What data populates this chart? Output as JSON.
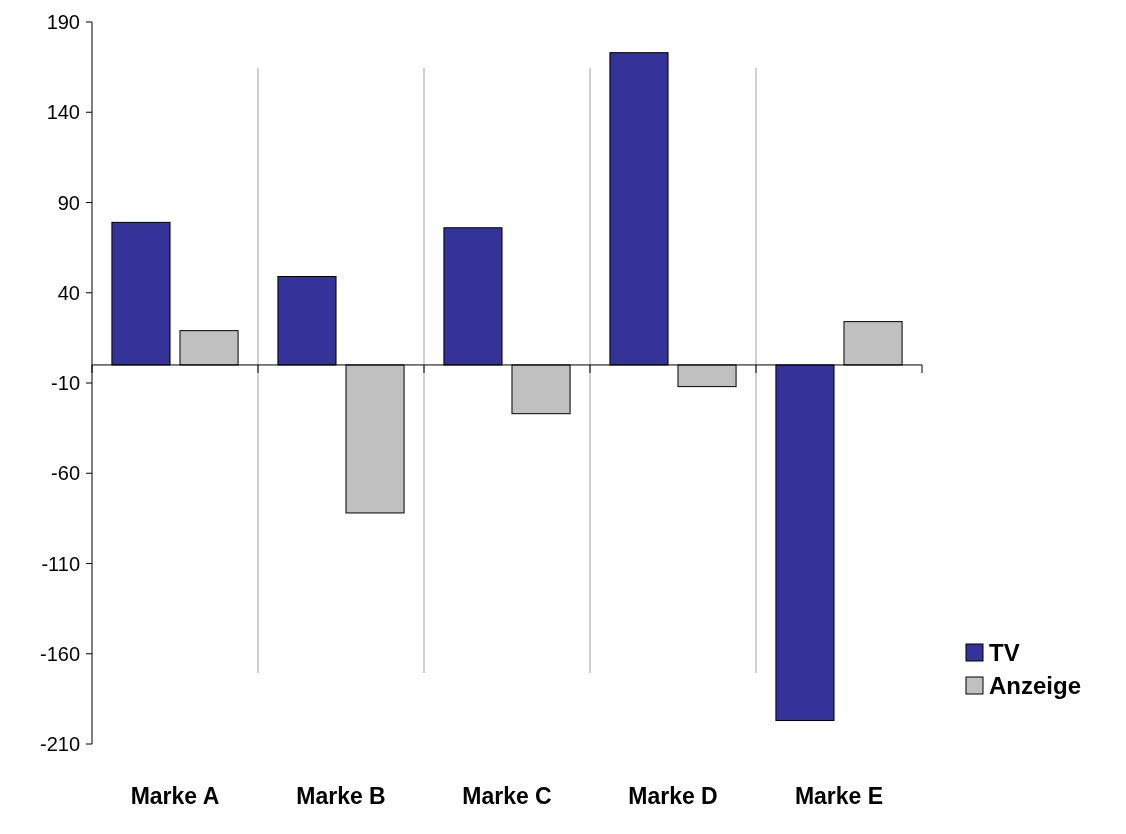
{
  "chart_data": {
    "type": "bar",
    "categories": [
      "Marke A",
      "Marke B",
      "Marke C",
      "Marke D",
      "Marke E"
    ],
    "series": [
      {
        "name": "TV",
        "color": "#333399",
        "values": [
          79,
          49,
          76,
          173,
          -197
        ]
      },
      {
        "name": "Anzeige",
        "color": "#c0c0c0",
        "values": [
          19,
          -82,
          -27,
          -12,
          24
        ]
      }
    ],
    "ylim": [
      -210,
      190
    ],
    "yticks": [
      -210,
      -160,
      -110,
      -60,
      -10,
      40,
      90,
      140,
      190
    ],
    "grid": "x",
    "legend": "right"
  }
}
